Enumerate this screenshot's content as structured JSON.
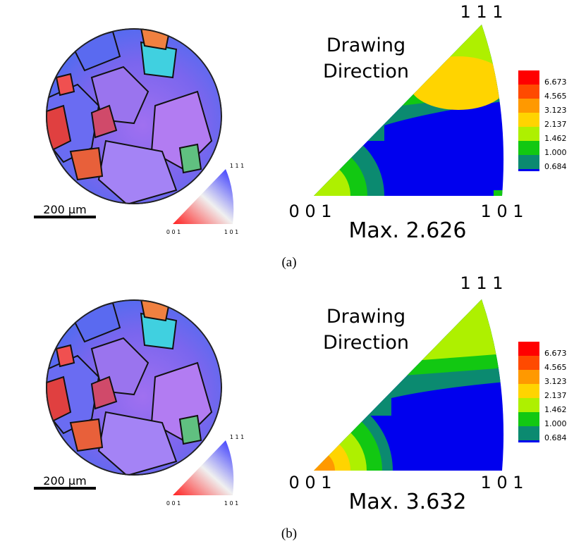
{
  "panels": [
    {
      "scale_bar": "200 μm",
      "key_labels": [
        "1 1 1",
        "0 0 1",
        "1 0 1"
      ],
      "title_lines": [
        "Drawing",
        "Direction"
      ],
      "pole_labels": [
        "1 1 1",
        "0 0 1",
        "1 0 1"
      ],
      "legend": [
        "6.673",
        "4.565",
        "3.123",
        "2.137",
        "1.462",
        "1.000",
        "0.684"
      ],
      "max": "Max. 2.626",
      "caption": "(a)"
    },
    {
      "scale_bar": "200 μm",
      "key_labels": [
        "1 1 1",
        "0 0 1",
        "1 0 1"
      ],
      "title_lines": [
        "Drawing",
        "Direction"
      ],
      "pole_labels": [
        "1 1 1",
        "0 0 1",
        "1 0 1"
      ],
      "legend": [
        "6.673",
        "4.565",
        "3.123",
        "2.137",
        "1.462",
        "1.000",
        "0.684"
      ],
      "max": "Max. 3.632",
      "caption": "(b)"
    }
  ]
}
